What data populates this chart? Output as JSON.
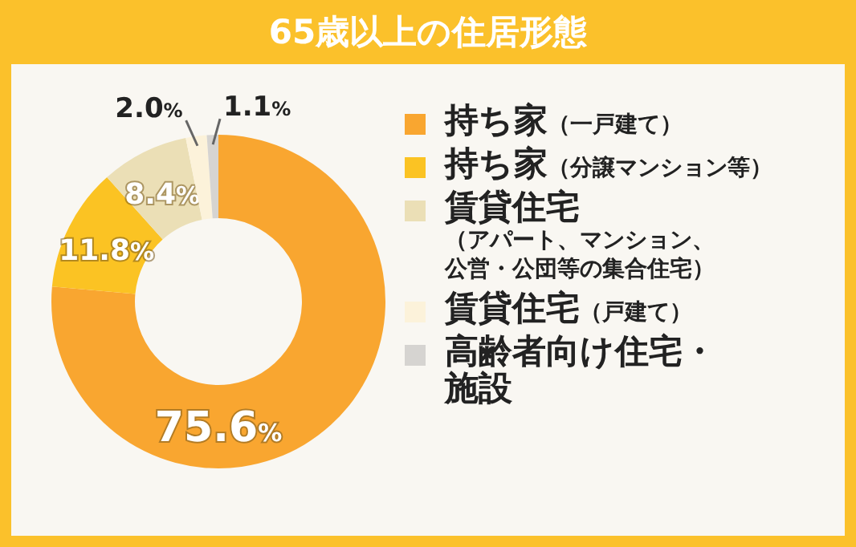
{
  "chart_data": {
    "type": "donut",
    "title": "65歳以上の住居形態",
    "categories": [
      "持ち家（一戸建て）",
      "持ち家（分譲マンション等）",
      "賃貸住宅（アパート、マンション、公営・公団等の集合住宅）",
      "賃貸住宅（戸建て）",
      "高齢者向け住宅・施設"
    ],
    "values": [
      75.6,
      11.8,
      8.4,
      2.0,
      1.1
    ],
    "value_labels": [
      "75.6%",
      "11.8%",
      "8.4%",
      "2.0%",
      "1.1%"
    ],
    "colors": [
      "#f9a630",
      "#fbc323",
      "#ebdfb6",
      "#fcf2da",
      "#d6d4d1"
    ],
    "legend": "right"
  }
}
